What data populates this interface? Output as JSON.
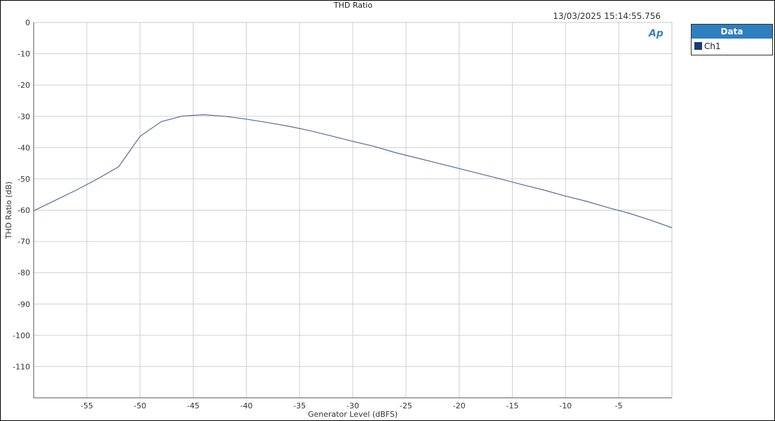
{
  "chart_data": {
    "type": "line",
    "title": "THD Ratio",
    "timestamp": "13/03/2025 15:14:55.756",
    "xlabel": "Generator Level (dBFS)",
    "ylabel": "THD Ratio (dB)",
    "xlim": [
      -60,
      0
    ],
    "ylim": [
      -120,
      0
    ],
    "x_ticks": [
      "-55",
      "-50",
      "-45",
      "-40",
      "-35",
      "-30",
      "-25",
      "-20",
      "-15",
      "-10",
      "-5"
    ],
    "x_tick_values": [
      -55,
      -50,
      -45,
      -40,
      -35,
      -30,
      -25,
      -20,
      -15,
      -10,
      -5
    ],
    "y_ticks": [
      "0",
      "-10",
      "-20",
      "-30",
      "-40",
      "-50",
      "-60",
      "-70",
      "-80",
      "-90",
      "-100",
      "-110"
    ],
    "y_tick_values": [
      0,
      -10,
      -20,
      -30,
      -40,
      -50,
      -60,
      -70,
      -80,
      -90,
      -100,
      -110
    ],
    "grid": true,
    "legend": {
      "title": "Data",
      "placement": "right"
    },
    "series": [
      {
        "name": "Ch1",
        "color": "#5b6b95",
        "legend_color": "#1a3a7a",
        "x": [
          -60,
          -58,
          -56,
          -54,
          -52,
          -50,
          -48,
          -46,
          -44,
          -42,
          -40,
          -38,
          -36,
          -34,
          -32,
          -30,
          -28,
          -26,
          -24,
          -22,
          -20,
          -18,
          -16,
          -14,
          -12,
          -10,
          -8,
          -6,
          -4,
          -2,
          0
        ],
        "y": [
          -60.2,
          -56.9,
          -53.6,
          -50.0,
          -46.1,
          -36.4,
          -31.7,
          -29.9,
          -29.5,
          -30.0,
          -30.9,
          -32.0,
          -33.2,
          -34.6,
          -36.3,
          -38.0,
          -39.6,
          -41.6,
          -43.3,
          -45.0,
          -46.7,
          -48.4,
          -50.1,
          -51.9,
          -53.6,
          -55.5,
          -57.2,
          -59.2,
          -61.0,
          -63.2,
          -65.6
        ]
      }
    ],
    "logo": "AP"
  }
}
